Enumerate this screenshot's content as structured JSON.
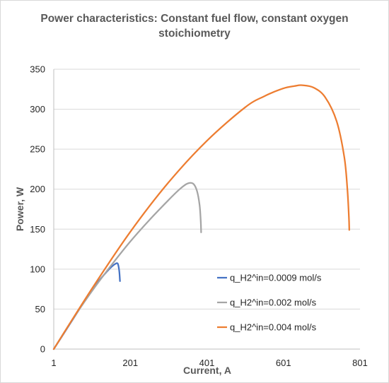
{
  "chart_data": {
    "type": "line",
    "title": "Power characteristics: Constant fuel flow, constant oxygen stoichiometry",
    "title_lines": [
      "Power characteristics: Constant fuel flow, constant oxygen",
      "stoichiometry"
    ],
    "xlabel": "Current, A",
    "ylabel": "Power, W",
    "xlim": [
      1,
      801
    ],
    "ylim": [
      0,
      350
    ],
    "x_ticks": [
      "1",
      "201",
      "401",
      "601",
      "801"
    ],
    "y_ticks": [
      "0",
      "50",
      "100",
      "150",
      "200",
      "250",
      "300",
      "350"
    ],
    "grid": "horizontal",
    "legend_position": "lower-right",
    "series": [
      {
        "name": "q_H2^in=0.0009 mol/s",
        "color": "#4472c4",
        "x": [
          1,
          20,
          40,
          60,
          80,
          100,
          120,
          140,
          150,
          160,
          168,
          172,
          174
        ],
        "y": [
          0,
          14,
          29,
          44,
          59,
          73,
          86,
          97,
          102,
          106,
          107,
          98,
          85
        ]
      },
      {
        "name": "q_H2^in=0.002 mol/s",
        "color": "#a5a5a5",
        "x": [
          1,
          50,
          100,
          150,
          200,
          250,
          300,
          330,
          350,
          365,
          375,
          382,
          385,
          386
        ],
        "y": [
          0,
          37,
          72,
          104,
          134,
          161,
          186,
          200,
          207,
          207,
          198,
          180,
          160,
          146
        ]
      },
      {
        "name": "q_H2^in=0.004 mol/s",
        "color": "#ed7d31",
        "x": [
          1,
          100,
          200,
          300,
          400,
          500,
          550,
          600,
          630,
          650,
          680,
          710,
          740,
          760,
          768,
          772,
          773
        ],
        "y": [
          0,
          75,
          146,
          208,
          260,
          302,
          316,
          326,
          329,
          330,
          327,
          315,
          285,
          240,
          200,
          165,
          149
        ]
      }
    ]
  }
}
